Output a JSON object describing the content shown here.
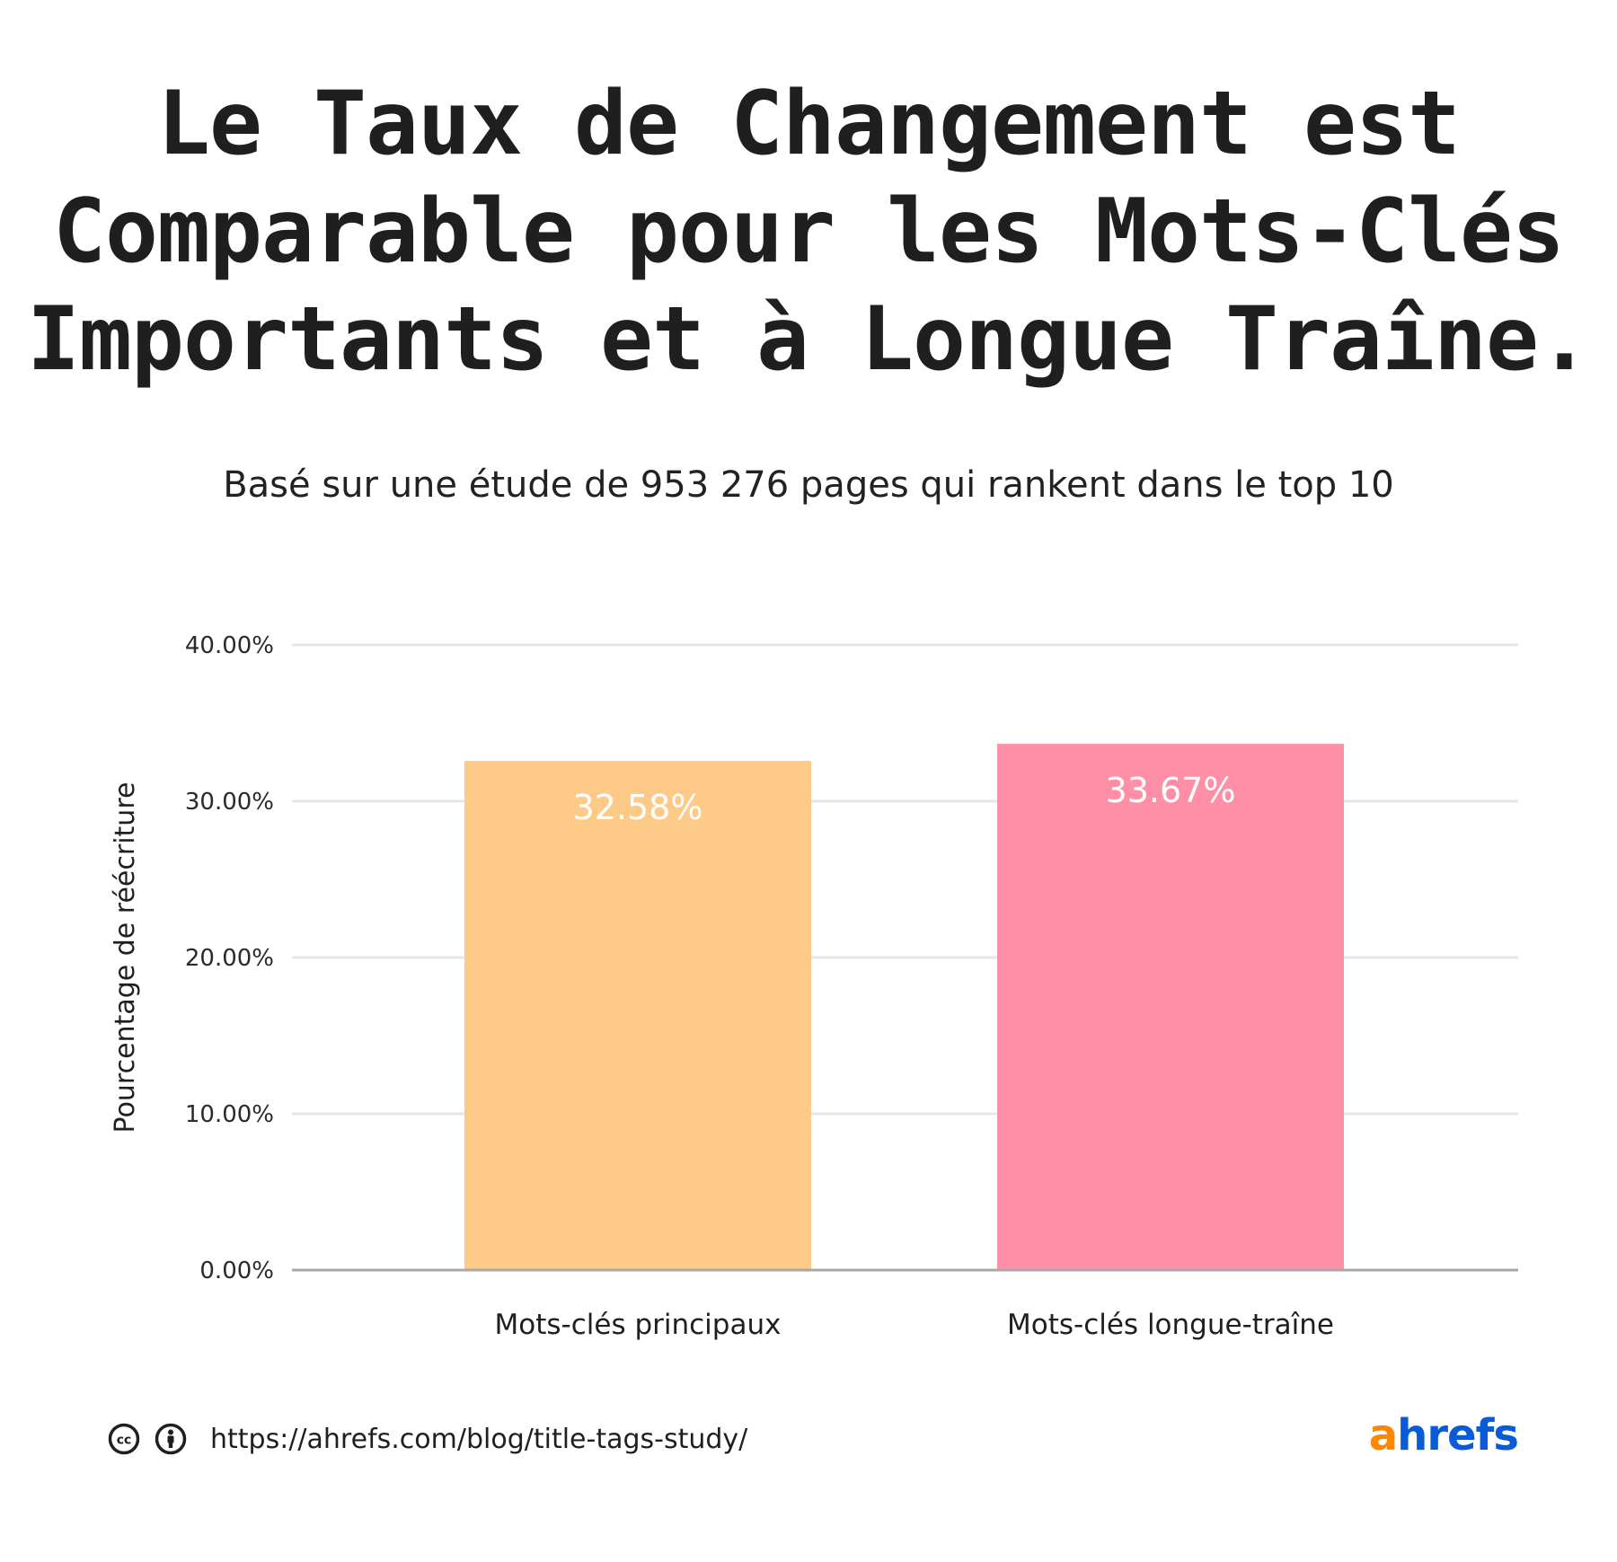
{
  "header": {
    "title_lines": [
      "Le Taux de Changement est",
      "Comparable pour les Mots-Clés",
      "Importants et à Longue Traîne."
    ],
    "subtitle": "Basé sur une étude de 953 276 pages qui rankent dans le top 10"
  },
  "chart_data": {
    "type": "bar",
    "title": "Le Taux de Changement est Comparable pour les Mots-Clés Importants et à Longue Traîne.",
    "subtitle": "Basé sur une étude de 953 276 pages qui rankent dans le top 10",
    "categories": [
      "Mots-clés principaux",
      "Mots-clés longue-traîne"
    ],
    "values": [
      32.58,
      33.67
    ],
    "data_labels": [
      "32.58%",
      "33.67%"
    ],
    "colors": [
      "#fdca88",
      "#ff8fa6"
    ],
    "xlabel": "",
    "ylabel": "Pourcentage de réécriture",
    "ylim": [
      0,
      40
    ],
    "yticks": [
      0,
      10,
      20,
      30,
      40
    ],
    "ytick_labels": [
      "0.00%",
      "10.00%",
      "20.00%",
      "30.00%",
      "40.00%"
    ],
    "grid": true,
    "grid_color": "#e6e6e6",
    "axis_color": "#a8a8a8"
  },
  "footer": {
    "url": "https://ahrefs.com/blog/title-tags-study/",
    "icons": [
      "cc-icon",
      "attribution-icon"
    ]
  },
  "logo": {
    "a": "a",
    "rest": "hrefs",
    "color_a": "#ff8800",
    "color_rest": "#0a5bd6"
  }
}
